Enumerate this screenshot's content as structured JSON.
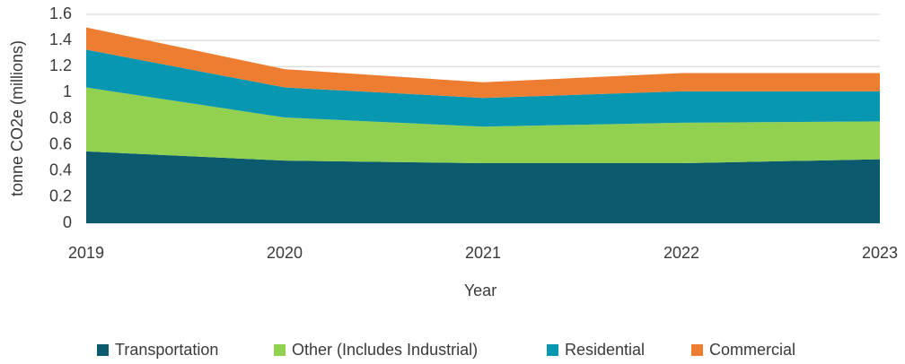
{
  "chart_data": {
    "type": "stacked_area",
    "x": [
      2019,
      2020,
      2021,
      2022,
      2023
    ],
    "xlim": [
      2019,
      2023
    ],
    "xticks": [
      2019,
      2020,
      2021,
      2022,
      2023
    ],
    "ylim": [
      0,
      1.6
    ],
    "yticks": [
      0,
      0.2,
      0.4,
      0.6,
      0.8,
      1,
      1.2,
      1.4,
      1.6
    ],
    "xlabel": "Year",
    "ylabel": "tonne CO2e (millions)",
    "grid": true,
    "legend": "bottom",
    "series": [
      {
        "name": "Transportation",
        "color": "#0b5a6e",
        "values": [
          0.55,
          0.48,
          0.46,
          0.46,
          0.49
        ]
      },
      {
        "name": "Other (Includes Industrial)",
        "color": "#92d050",
        "values": [
          0.49,
          0.33,
          0.28,
          0.31,
          0.29
        ]
      },
      {
        "name": "Residential",
        "color": "#0797b1",
        "values": [
          0.29,
          0.23,
          0.22,
          0.24,
          0.23
        ]
      },
      {
        "name": "Commercial",
        "color": "#ed7d31",
        "values": [
          0.17,
          0.14,
          0.12,
          0.14,
          0.14
        ]
      }
    ]
  }
}
